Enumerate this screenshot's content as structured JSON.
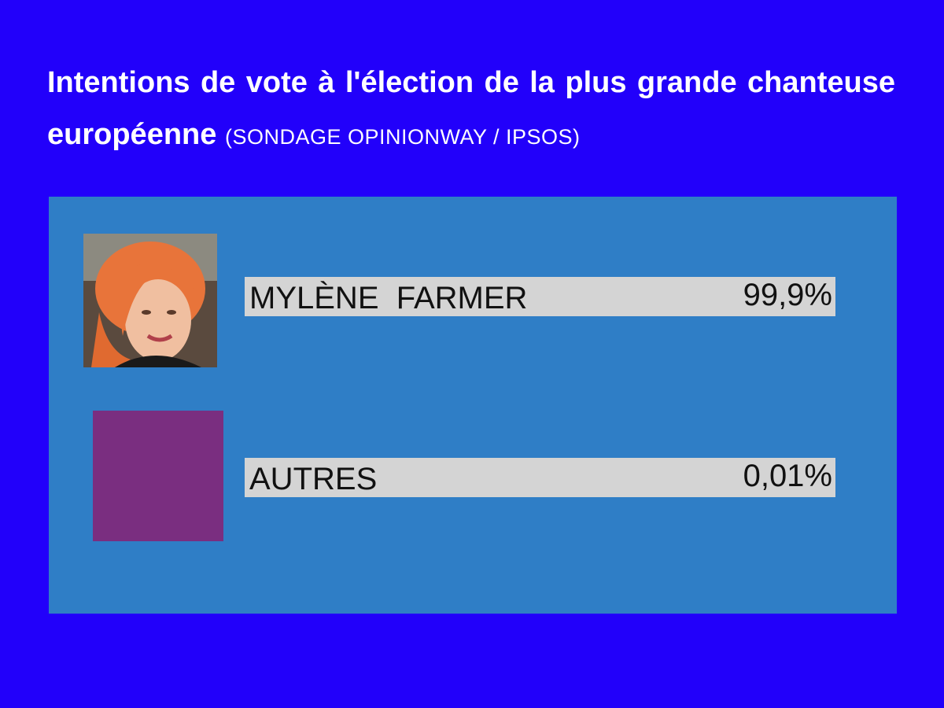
{
  "header": {
    "title": "Intentions de vote à l'élection de la plus grande chanteuse européenne",
    "subtitle": "(SONDAGE OPINIONWAY / IPSOS)"
  },
  "rows": [
    {
      "name": "MYLÈNE  FARMER",
      "value": "99,9%"
    },
    {
      "name": "AUTRES",
      "value": "0,01%"
    }
  ]
}
